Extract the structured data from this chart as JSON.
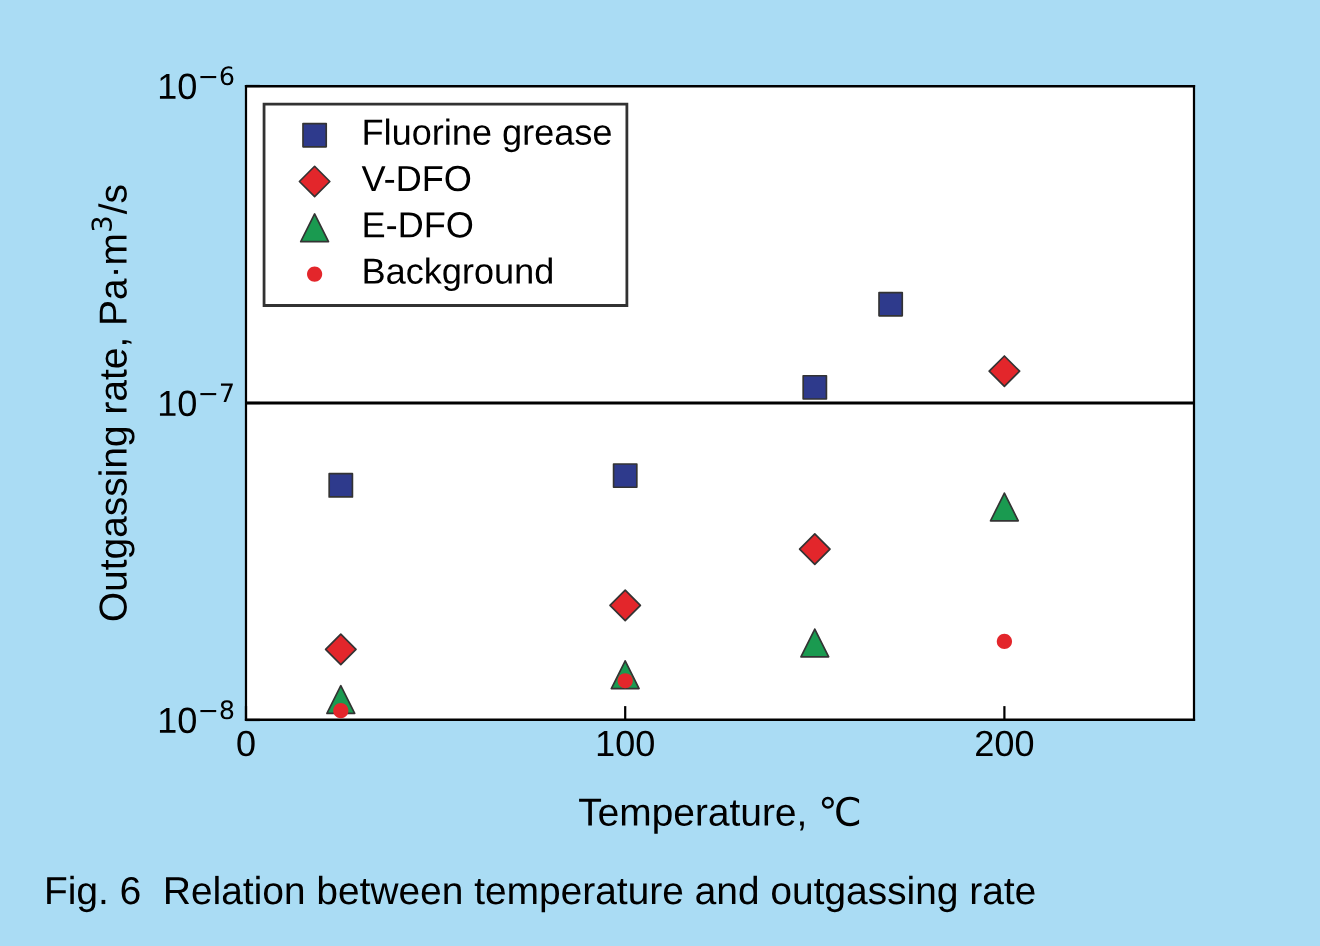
{
  "chart_data": {
    "type": "scatter",
    "xlabel": "Temperature, ℃",
    "ylabel": "Outgassing rate, Pa·m$^{3}$/s",
    "log": "y",
    "grid": "y",
    "legend": "top left",
    "xlim": [
      0,
      250
    ],
    "xticks": [
      0,
      100,
      200
    ],
    "ylim": [
      1e-08,
      1e-06
    ],
    "yticks": [
      {
        "value": 1e-08,
        "label": "10$^{−8}$"
      },
      {
        "value": 1e-07,
        "label": "10$^{−7}$"
      },
      {
        "value": 1e-06,
        "label": "10$^{−6}$"
      }
    ],
    "series": [
      {
        "name": "Fluorine grease",
        "color": "#2e3a8c",
        "marker": "square",
        "x": [
          25,
          100,
          150,
          170
        ],
        "values": [
          5.5e-08,
          5.9e-08,
          1.12e-07,
          2.05e-07
        ]
      },
      {
        "name": "V-DFO",
        "color": "#e3262b",
        "marker": "diamond",
        "x": [
          25,
          100,
          150,
          200
        ],
        "values": [
          1.67e-08,
          2.3e-08,
          3.46e-08,
          1.26e-07
        ]
      },
      {
        "name": "E-DFO",
        "color": "#1a9a50",
        "marker": "triangle",
        "x": [
          25,
          100,
          150,
          200
        ],
        "values": [
          1.16e-08,
          1.39e-08,
          1.75e-08,
          4.7e-08
        ]
      },
      {
        "name": "Background",
        "color": "#e3262b",
        "marker": "circle",
        "x": [
          25,
          100,
          200
        ],
        "values": [
          1.07e-08,
          1.33e-08,
          1.77e-08
        ]
      }
    ],
    "annotations": [
      "Fig. 6  Relation between temperature and outgassing rate"
    ]
  }
}
